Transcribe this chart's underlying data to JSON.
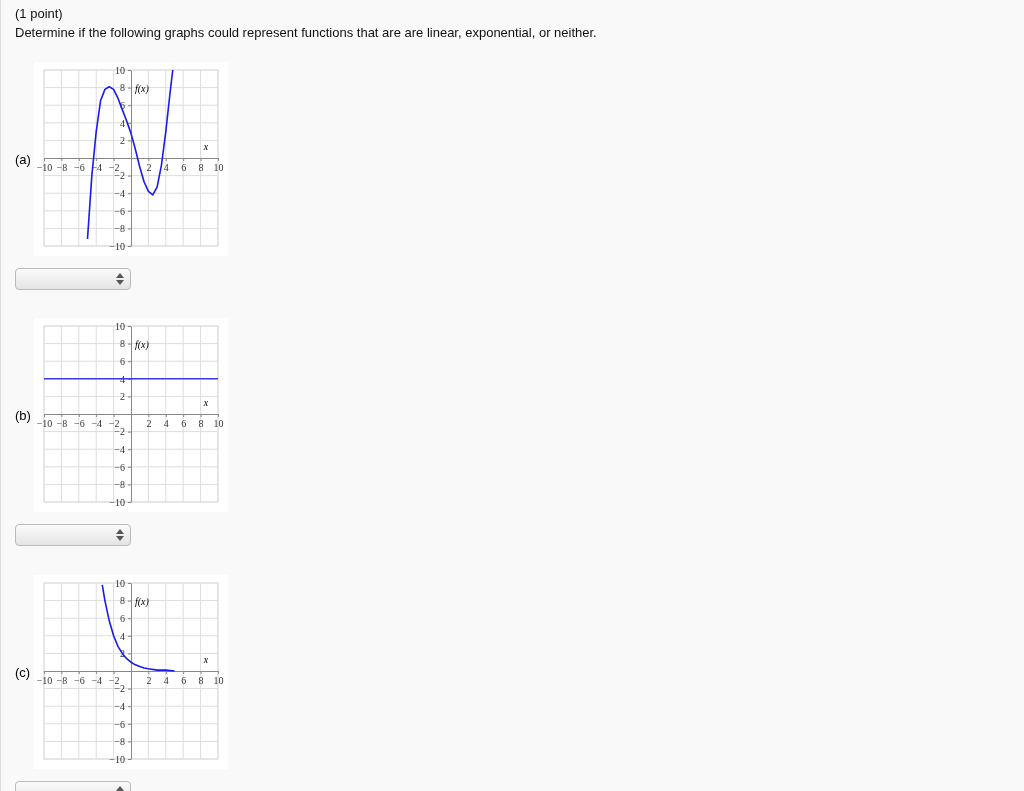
{
  "chart_data": [
    {
      "type": "line",
      "title": "(1 point)",
      "subtitle": "Determine if the following graphs could represent functions that are are linear, exponential, or neither.",
      "annotations": [
        "(a)"
      ],
      "xlabel": "x",
      "ylabel": "f(x)",
      "xlim": [
        -10,
        10
      ],
      "ylim": [
        -10,
        10
      ],
      "xticks": [
        -10,
        -8,
        -6,
        -4,
        -2,
        2,
        4,
        6,
        8,
        10
      ],
      "yticks": [
        -10,
        -8,
        -6,
        -4,
        -2,
        2,
        4,
        6,
        8,
        10
      ],
      "grid": true,
      "series": [
        {
          "color": "#1a1aee",
          "x": [
            -5,
            -4.5,
            -4,
            -3.5,
            -3,
            -2.5,
            -2,
            -1.5,
            -1,
            -0.5,
            0,
            0.5,
            1,
            1.5,
            2,
            2.5,
            3,
            3.5,
            4,
            4.5,
            4.8
          ],
          "values": [
            -9.2,
            -2,
            3,
            6.5,
            7.8,
            8.1,
            7.8,
            6.8,
            5.5,
            4.2,
            2.8,
            1,
            -1,
            -2.7,
            -3.8,
            -4.2,
            -3.3,
            -0.8,
            3,
            7.5,
            10
          ]
        }
      ]
    },
    {
      "type": "line",
      "annotations": [
        "(b)"
      ],
      "xlabel": "x",
      "ylabel": "f(x)",
      "xlim": [
        -10,
        10
      ],
      "ylim": [
        -10,
        10
      ],
      "xticks": [
        -10,
        -8,
        -6,
        -4,
        -2,
        2,
        4,
        6,
        8,
        10
      ],
      "yticks": [
        -10,
        -8,
        -6,
        -4,
        -2,
        2,
        4,
        6,
        8,
        10
      ],
      "grid": true,
      "series": [
        {
          "color": "#3a3aee",
          "x": [
            -10,
            10
          ],
          "values": [
            4,
            4
          ]
        }
      ]
    },
    {
      "type": "line",
      "annotations": [
        "(c)"
      ],
      "xlabel": "x",
      "ylabel": "f(x)",
      "xlim": [
        -10,
        10
      ],
      "ylim": [
        -10,
        10
      ],
      "xticks": [
        -10,
        -8,
        -6,
        -4,
        -2,
        2,
        4,
        6,
        8,
        10
      ],
      "yticks": [
        -10,
        -8,
        -6,
        -4,
        -2,
        2,
        4,
        6,
        8,
        10
      ],
      "grid": true,
      "series": [
        {
          "color": "#1a1aee",
          "x": [
            -3.3,
            -3,
            -2.5,
            -2,
            -1.5,
            -1,
            -0.5,
            0,
            0.5,
            1,
            1.5,
            2,
            3,
            4,
            5
          ],
          "values": [
            9.8,
            8,
            5.7,
            4,
            2.8,
            2,
            1.4,
            1,
            0.7,
            0.5,
            0.35,
            0.25,
            0.1,
            0.1,
            0
          ]
        }
      ]
    }
  ]
}
